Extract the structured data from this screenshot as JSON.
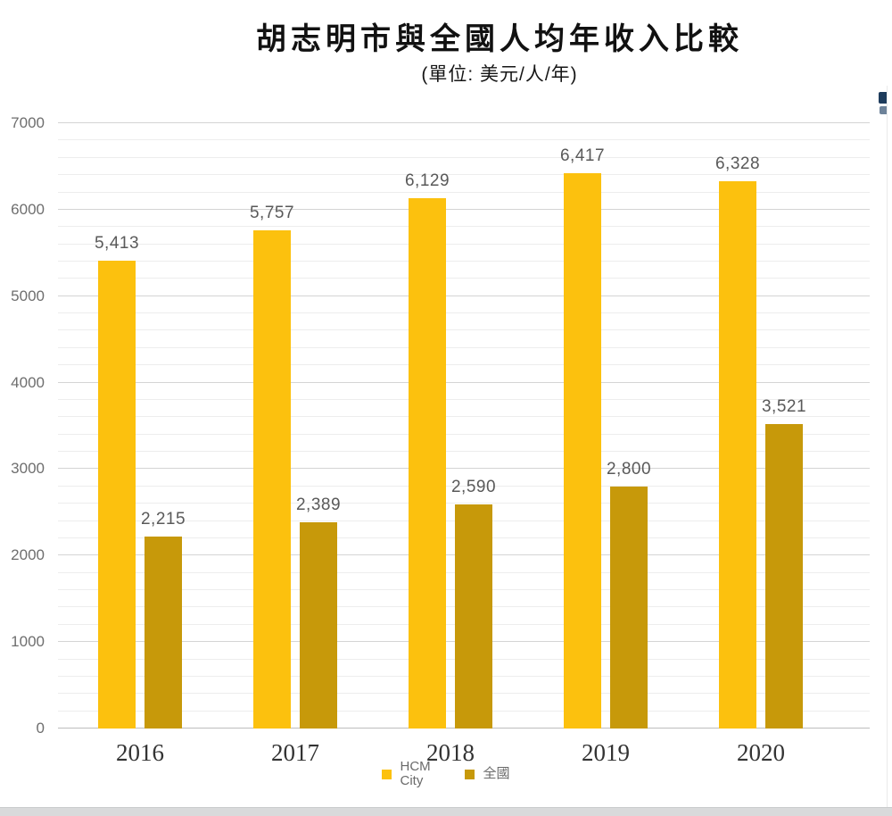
{
  "title": "胡志明市與全國人均年收入比較",
  "subtitle": "(單位: 美元/人/年)",
  "chart_data": {
    "type": "bar",
    "categories": [
      "2016",
      "2017",
      "2018",
      "2019",
      "2020"
    ],
    "series": [
      {
        "name": "HCM City",
        "color": "#FCC10E",
        "values": [
          5413,
          5757,
          6129,
          6417,
          6328
        ]
      },
      {
        "name": "全國",
        "color": "#C7990A",
        "values": [
          2215,
          2389,
          2590,
          2800,
          3521
        ]
      }
    ],
    "data_labels": [
      [
        "5,413",
        "5,757",
        "6,129",
        "6,417",
        "6,328"
      ],
      [
        "2,215",
        "2,389",
        "2,590",
        "2,800",
        "3,521"
      ]
    ],
    "title": "胡志明市與全國人均年收入比較",
    "subtitle": "(單位: 美元/人/年)",
    "xlabel": "",
    "ylabel": "",
    "ylim": [
      0,
      7000
    ],
    "y_major_step": 1000,
    "y_minor_step": 200,
    "y_tick_labels": [
      "0",
      "1000",
      "2000",
      "3000",
      "4000",
      "5000",
      "6000",
      "7000"
    ],
    "grid": true,
    "legend_position": "bottom"
  },
  "legend": {
    "items": [
      {
        "label": "HCM City",
        "color": "#FCC10E"
      },
      {
        "label": "全國",
        "color": "#C7990A"
      }
    ]
  },
  "icons": {
    "edge_icon": "clipped-toolbar-icon"
  },
  "colors": {
    "bar_primary": "#FCC10E",
    "bar_secondary": "#C7990A",
    "grid_minor": "#ededed",
    "grid_major": "#d4d4d4",
    "axis_baseline": "#bdbdbd",
    "label_text": "#595959",
    "tick_text": "#6e6e6e"
  }
}
